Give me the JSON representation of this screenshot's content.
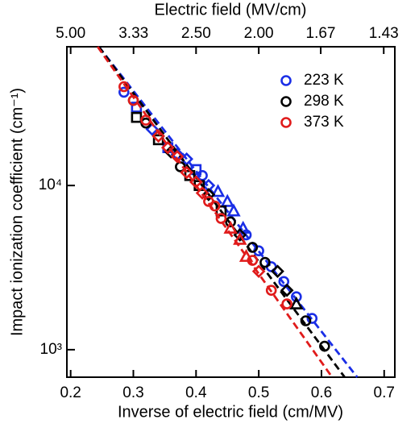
{
  "chart_data": {
    "type": "scatter",
    "xlabel": "Inverse of electric field (cm/MV)",
    "x2label": "Electric field (MV/cm)",
    "ylabel": "Impact ionization coefficient (cm⁻¹)",
    "xlim": [
      0.194,
      0.717
    ],
    "xticks": [
      0.2,
      0.3,
      0.4,
      0.5,
      0.6,
      0.7
    ],
    "x2ticks": [
      {
        "value": 5,
        "label": "5.00"
      },
      3.33,
      {
        "value": 2.5,
        "label": "2.50"
      },
      {
        "value": 2,
        "label": "2.00"
      },
      1.67,
      1.43
    ],
    "ylim": [
      680,
      70000
    ],
    "ylog": true,
    "yticks": [
      {
        "value": 1000,
        "label": "10³"
      },
      {
        "value": 10000,
        "label": "10⁴"
      }
    ],
    "legend": "top-right",
    "series": [
      {
        "name": "223 K",
        "color": "#1a2ee6",
        "x": [
          0.285,
          0.305,
          0.33,
          0.355,
          0.37,
          0.385,
          0.4,
          0.41,
          0.42,
          0.435,
          0.45,
          0.46,
          0.475,
          0.48,
          0.5,
          0.52,
          0.54,
          0.56,
          0.585
        ],
        "values": [
          37000,
          30000,
          22000,
          17000,
          15500,
          14500,
          12500,
          11500,
          10000,
          9200,
          8000,
          7000,
          5500,
          5000,
          4000,
          3200,
          2600,
          2100,
          1550
        ],
        "markers": [
          "o",
          "s",
          "d",
          "s",
          "d",
          "d",
          "s",
          "o",
          "d",
          "t",
          "t",
          "t",
          "t",
          "o",
          "o",
          "o",
          "o",
          "o",
          "o"
        ],
        "fit": {
          "x": [
            0.245,
            0.657
          ],
          "values": [
            70000,
            680
          ]
        }
      },
      {
        "name": "298 K",
        "color": "#000000",
        "x": [
          0.3,
          0.305,
          0.32,
          0.34,
          0.36,
          0.375,
          0.39,
          0.405,
          0.42,
          0.44,
          0.455,
          0.47,
          0.49,
          0.51,
          0.53,
          0.545,
          0.56,
          0.575,
          0.605
        ],
        "values": [
          33000,
          26000,
          24000,
          19000,
          16000,
          13000,
          11500,
          10000,
          8800,
          7000,
          6000,
          5000,
          4200,
          3400,
          3000,
          2300,
          1900,
          1500,
          1050
        ],
        "markers": [
          "o",
          "s",
          "o",
          "s",
          "d",
          "o",
          "s",
          "s",
          "d",
          "s",
          "o",
          "d",
          "o",
          "o",
          "d",
          "d",
          "t",
          "o",
          "o"
        ],
        "fit": {
          "x": [
            0.245,
            0.637
          ],
          "values": [
            70000,
            680
          ]
        }
      },
      {
        "name": "373 K",
        "color": "#e01b1b",
        "x": [
          0.285,
          0.3,
          0.32,
          0.34,
          0.355,
          0.37,
          0.385,
          0.4,
          0.41,
          0.42,
          0.43,
          0.44,
          0.455,
          0.47,
          0.48,
          0.49,
          0.5,
          0.52,
          0.545
        ],
        "values": [
          40000,
          33000,
          25000,
          20000,
          17000,
          15000,
          12000,
          10500,
          9000,
          8000,
          7500,
          6300,
          5500,
          4700,
          3700,
          3500,
          3000,
          2300,
          1900
        ],
        "markers": [
          "o",
          "o",
          "o",
          "d",
          "d",
          "d",
          "d",
          "d",
          "d",
          "o",
          "o",
          "o",
          "t",
          "t",
          "t",
          "o",
          "d",
          "o",
          "o"
        ],
        "fit": {
          "x": [
            0.243,
            0.617
          ],
          "values": [
            70000,
            680
          ]
        }
      }
    ]
  }
}
